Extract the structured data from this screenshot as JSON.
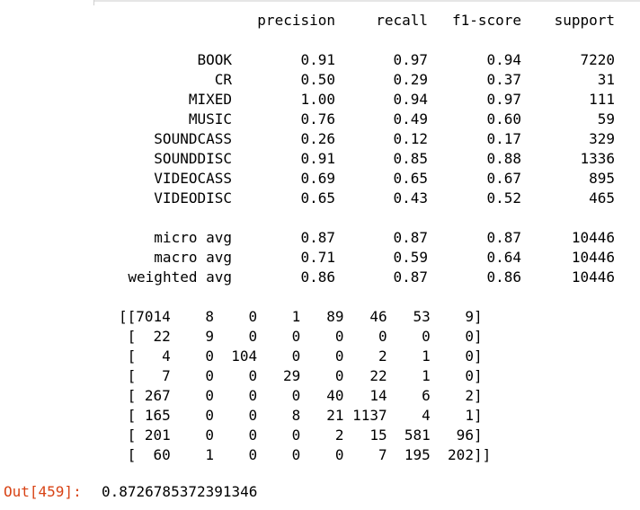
{
  "report": {
    "headers": [
      "precision",
      "recall",
      "f1-score",
      "support"
    ],
    "rows": [
      {
        "label": "BOOK",
        "values": [
          "0.91",
          "0.97",
          "0.94",
          "7220"
        ]
      },
      {
        "label": "CR",
        "values": [
          "0.50",
          "0.29",
          "0.37",
          "31"
        ]
      },
      {
        "label": "MIXED",
        "values": [
          "1.00",
          "0.94",
          "0.97",
          "111"
        ]
      },
      {
        "label": "MUSIC",
        "values": [
          "0.76",
          "0.49",
          "0.60",
          "59"
        ]
      },
      {
        "label": "SOUNDCASS",
        "values": [
          "0.26",
          "0.12",
          "0.17",
          "329"
        ]
      },
      {
        "label": "SOUNDDISC",
        "values": [
          "0.91",
          "0.85",
          "0.88",
          "1336"
        ]
      },
      {
        "label": "VIDEOCASS",
        "values": [
          "0.69",
          "0.65",
          "0.67",
          "895"
        ]
      },
      {
        "label": "VIDEODISC",
        "values": [
          "0.65",
          "0.43",
          "0.52",
          "465"
        ]
      }
    ],
    "averages": [
      {
        "label": "micro avg",
        "values": [
          "0.87",
          "0.87",
          "0.87",
          "10446"
        ]
      },
      {
        "label": "macro avg",
        "values": [
          "0.71",
          "0.59",
          "0.64",
          "10446"
        ]
      },
      {
        "label": "weighted avg",
        "values": [
          "0.86",
          "0.87",
          "0.86",
          "10446"
        ]
      }
    ]
  },
  "matrix": {
    "lines": [
      "[[7014    8    0    1   89   46   53    9]",
      " [  22    9    0    0    0    0    0    0]",
      " [   4    0  104    0    0    2    1    0]",
      " [   7    0    0   29    0   22    1    0]",
      " [ 267    0    0    0   40   14    6    2]",
      " [ 165    0    0    8   21 1137    4    1]",
      " [ 201    0    0    0    2   15  581   96]",
      " [  60    1    0    0    0    7  195  202]]"
    ]
  },
  "result": {
    "prompt": "Out[459]:",
    "value": "0.8726785372391346"
  }
}
